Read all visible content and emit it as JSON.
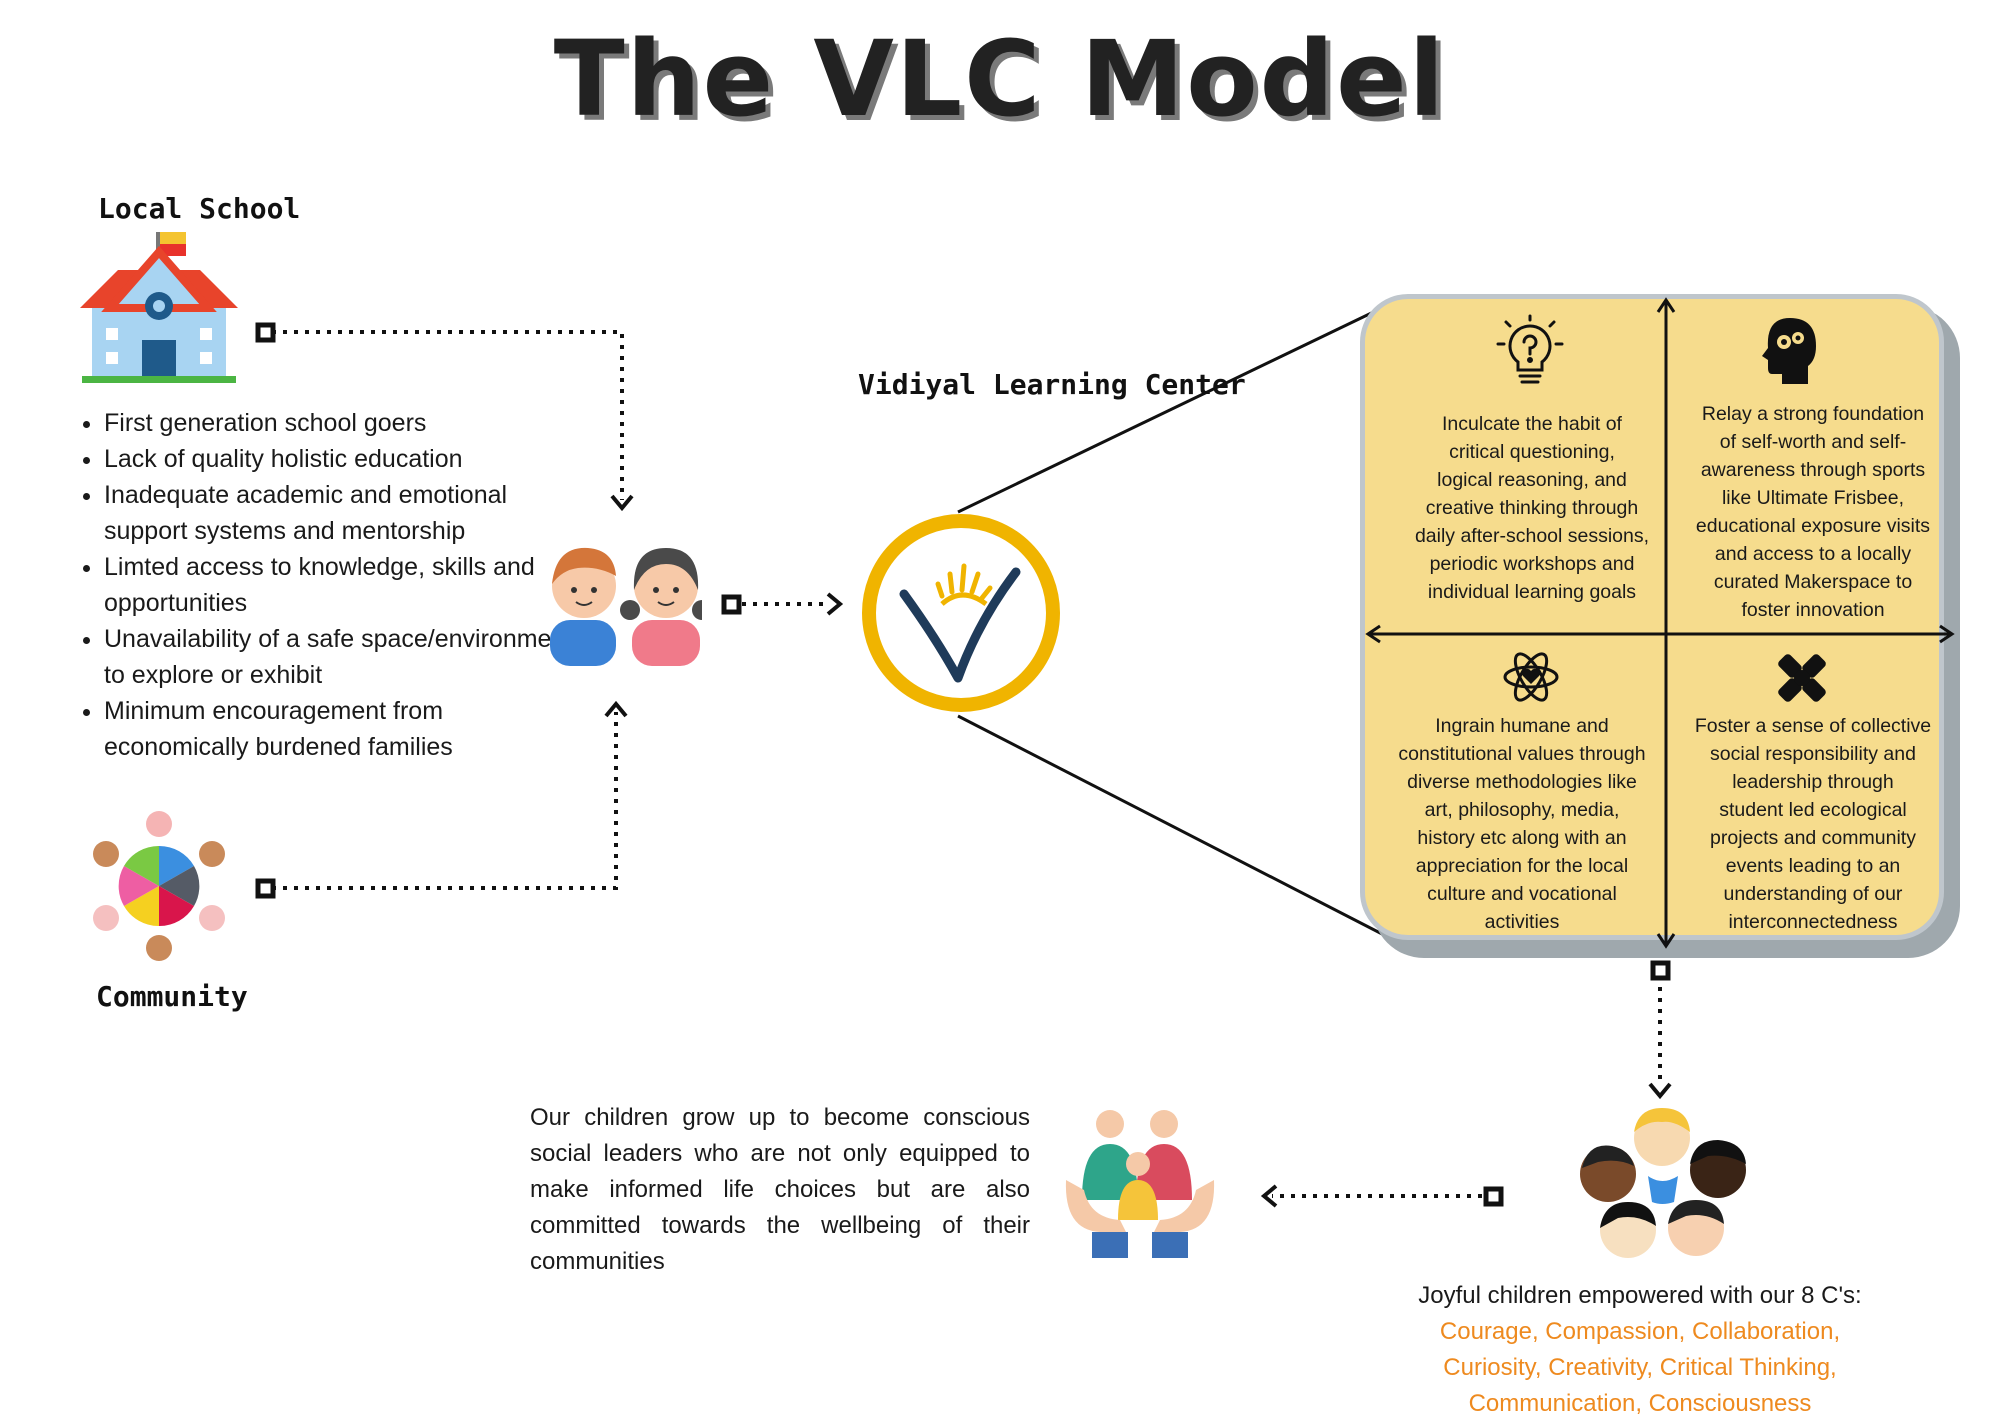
{
  "title": "The VLC Model",
  "nodes": {
    "local_school": "Local School",
    "community": "Community",
    "vlc": "Vidiyal Learning Center"
  },
  "problems": [
    "First generation school goers",
    "Lack of quality holistic education",
    "Inadequate academic and emotional support systems and mentorship",
    "Limted access to knowledge, skills and opportunities",
    "Unavailability of a safe space/environment to explore or exhibit",
    "Minimum encouragement from economically burdened families"
  ],
  "quadrants": {
    "top_left": {
      "icon": "lightbulb-question-icon",
      "lines": [
        "Inculcate the habit of",
        "critical questioning,",
        "logical reasoning, and",
        "creative thinking through",
        "daily after-school sessions,",
        "periodic workshops and",
        "individual learning goals"
      ]
    },
    "top_right": {
      "icon": "head-gears-icon",
      "lines": [
        "Relay a strong foundation",
        "of self-worth and self-",
        "awareness through sports",
        "like Ultimate Frisbee,",
        "educational exposure visits",
        "and access to a locally",
        "curated Makerspace to",
        "foster innovation"
      ]
    },
    "bottom_left": {
      "icon": "atom-heart-icon",
      "lines": [
        "Ingrain humane and",
        "constitutional values through",
        "diverse methodologies like",
        "art, philosophy, media,",
        "history etc along with an",
        "appreciation for the local",
        "culture and vocational",
        "activities"
      ]
    },
    "bottom_right": {
      "icon": "joined-hands-icon",
      "lines": [
        "Foster a sense of collective",
        "social responsibility and",
        "leadership through",
        "student led ecological",
        "projects and community",
        "events leading to an",
        "understanding of our",
        "interconnectedness"
      ]
    }
  },
  "outcome_text": "Our children grow up to become conscious social leaders who are not only equipped to make informed life choices but are also committed towards the wellbeing of their communities",
  "joy": {
    "intro": "Joyful children empowered with our 8 C's:",
    "lines": [
      "Courage, Compassion, Collaboration,",
      "Curiosity, Creativity, Critical Thinking,",
      "Communication, Consciousness"
    ]
  },
  "colors": {
    "panel": "#f6dc8d",
    "panel_border": "#bfc6cc",
    "logo_ring": "#f0b400",
    "logo_v": "#1f3b5a",
    "c_words": "#ee8a1f"
  }
}
